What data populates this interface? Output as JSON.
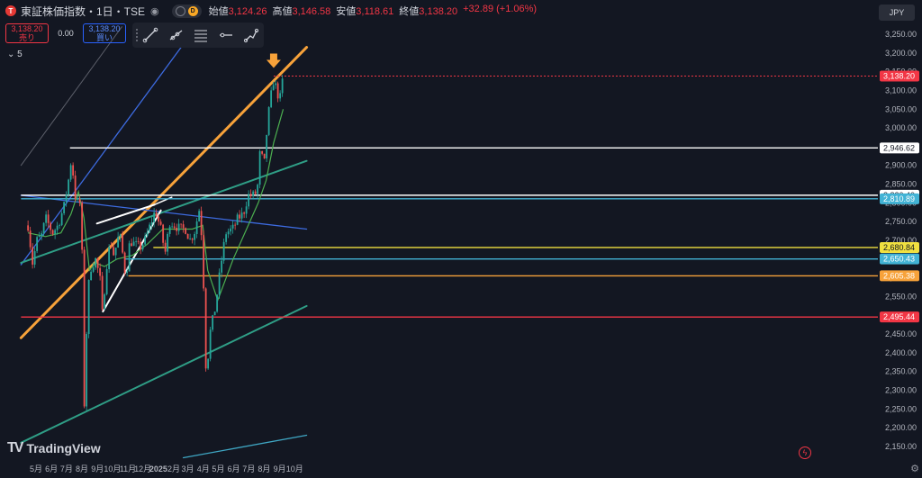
{
  "header": {
    "symbol_title": "東証株価指数・1日・TSE",
    "interval_badge": "D",
    "ohlc": [
      {
        "label": "始値",
        "value": "3,124.26"
      },
      {
        "label": "高値",
        "value": "3,146.58"
      },
      {
        "label": "安値",
        "value": "3,118.61"
      },
      {
        "label": "終値",
        "value": "3,138.20"
      }
    ],
    "change": "+32.89 (+1.06%)"
  },
  "trade": {
    "sell_price": "3,138.20",
    "sell_label": "売り",
    "spread": "0.00",
    "buy_price": "3,138.20",
    "buy_label": "買い"
  },
  "indicator_toggle": "5",
  "currency": "JPY",
  "brand": "TradingView",
  "icons": [
    "logo-icon",
    "eye-icon",
    "settings-icon",
    "lightning-icon",
    "trendline-icon",
    "ray-icon",
    "fib-icon",
    "horizontal-line-icon",
    "path-icon",
    "chevron-down-icon"
  ],
  "colors": {
    "background": "#131722",
    "up": "#26a69a",
    "down": "#ef5350",
    "accent_orange": "#f7a23a",
    "price_label": "#f23645"
  },
  "chart_data": {
    "type": "candlestick",
    "title": "",
    "xlabel": "",
    "ylabel": "",
    "ylim": [
      2120,
      3270
    ],
    "x_ticks": [
      "5月",
      "6月",
      "7月",
      "8月",
      "9月",
      "10月",
      "11月",
      "12月",
      "2025",
      "2月",
      "3月",
      "4月",
      "5月",
      "6月",
      "7月",
      "8月",
      "9月",
      "10月"
    ],
    "y_ticks": [
      2150,
      2200,
      2250,
      2300,
      2350,
      2400,
      2450,
      2500,
      2550,
      2600,
      2650,
      2700,
      2750,
      2800,
      2850,
      2900,
      2950,
      3000,
      3050,
      3100,
      3150,
      3200,
      3250
    ],
    "y_tick_labels": [
      "2,150.00",
      "2,200.00",
      "2,250.00",
      "2,300.00",
      "2,350.00",
      "2,400.00",
      "2,450.00",
      "2,500.00",
      "2,550.00",
      "2,600.00",
      "2,650.00",
      "2,700.00",
      "2,750.00",
      "2,800.00",
      "2,850.00",
      "2,900.00",
      "2,950.00",
      "3,000.00",
      "3,050.00",
      "3,100.00",
      "3,150.00",
      "3,200.00",
      "3,250.00"
    ],
    "price_path": [
      [
        "2024-04-15",
        2740
      ],
      [
        "2024-04-24",
        2640
      ],
      [
        "2024-05-03",
        2700
      ],
      [
        "2024-05-13",
        2715
      ],
      [
        "2024-05-20",
        2760
      ],
      [
        "2024-06-03",
        2720
      ],
      [
        "2024-06-14",
        2740
      ],
      [
        "2024-06-26",
        2790
      ],
      [
        "2024-07-05",
        2860
      ],
      [
        "2024-07-11",
        2920
      ],
      [
        "2024-07-20",
        2800
      ],
      [
        "2024-07-31",
        2800
      ],
      [
        "2024-08-05",
        2230
      ],
      [
        "2024-08-09",
        2420
      ],
      [
        "2024-08-16",
        2620
      ],
      [
        "2024-08-28",
        2650
      ],
      [
        "2024-09-06",
        2600
      ],
      [
        "2024-09-11",
        2500
      ],
      [
        "2024-09-19",
        2630
      ],
      [
        "2024-09-27",
        2700
      ],
      [
        "2024-10-04",
        2660
      ],
      [
        "2024-10-15",
        2720
      ],
      [
        "2024-10-22",
        2660
      ],
      [
        "2024-10-28",
        2600
      ],
      [
        "2024-11-05",
        2700
      ],
      [
        "2024-11-14",
        2690
      ],
      [
        "2024-11-25",
        2680
      ],
      [
        "2024-12-05",
        2700
      ],
      [
        "2024-12-13",
        2730
      ],
      [
        "2024-12-26",
        2780
      ],
      [
        "2025-01-08",
        2720
      ],
      [
        "2025-01-14",
        2660
      ],
      [
        "2025-01-24",
        2750
      ],
      [
        "2025-02-03",
        2740
      ],
      [
        "2025-02-14",
        2730
      ],
      [
        "2025-02-25",
        2730
      ],
      [
        "2025-03-05",
        2700
      ],
      [
        "2025-03-14",
        2720
      ],
      [
        "2025-03-25",
        2790
      ],
      [
        "2025-03-31",
        2660
      ],
      [
        "2025-04-07",
        2330
      ],
      [
        "2025-04-14",
        2450
      ],
      [
        "2025-04-25",
        2520
      ],
      [
        "2025-05-08",
        2650
      ],
      [
        "2025-05-16",
        2720
      ],
      [
        "2025-05-30",
        2730
      ],
      [
        "2025-06-10",
        2760
      ],
      [
        "2025-06-20",
        2770
      ],
      [
        "2025-06-30",
        2820
      ],
      [
        "2025-07-10",
        2820
      ],
      [
        "2025-07-18",
        2830
      ],
      [
        "2025-07-24",
        2940
      ],
      [
        "2025-08-01",
        2900
      ],
      [
        "2025-08-08",
        3020
      ],
      [
        "2025-08-14",
        3080
      ],
      [
        "2025-08-20",
        3130
      ],
      [
        "2025-08-28",
        3090
      ],
      [
        "2025-09-02",
        3080
      ],
      [
        "2025-09-05",
        3110
      ],
      [
        "2025-09-08",
        3138
      ]
    ],
    "ma_path": [
      [
        "2024-04-15",
        2720
      ],
      [
        "2024-05-20",
        2710
      ],
      [
        "2024-06-20",
        2720
      ],
      [
        "2024-07-10",
        2770
      ],
      [
        "2024-07-25",
        2830
      ],
      [
        "2024-08-05",
        2760
      ],
      [
        "2024-08-16",
        2620
      ],
      [
        "2024-08-28",
        2640
      ],
      [
        "2024-09-15",
        2630
      ],
      [
        "2024-10-10",
        2650
      ],
      [
        "2024-11-10",
        2660
      ],
      [
        "2024-12-10",
        2690
      ],
      [
        "2025-01-10",
        2730
      ],
      [
        "2025-02-10",
        2730
      ],
      [
        "2025-03-10",
        2730
      ],
      [
        "2025-03-31",
        2740
      ],
      [
        "2025-04-10",
        2620
      ],
      [
        "2025-04-30",
        2540
      ],
      [
        "2025-05-31",
        2650
      ],
      [
        "2025-06-30",
        2740
      ],
      [
        "2025-07-20",
        2800
      ],
      [
        "2025-08-05",
        2860
      ],
      [
        "2025-08-20",
        2960
      ],
      [
        "2025-09-08",
        3050
      ]
    ],
    "horizontal_levels": [
      {
        "price": 2946.62,
        "label": "2,946.62",
        "color": "#ffffff",
        "from": "2024-07-08"
      },
      {
        "price": 2820.4,
        "label": "2,820.40",
        "color": "#ffffff",
        "from": "2024-04-01"
      },
      {
        "price": 2810.89,
        "label": "2,810.89",
        "color": "#42b3d5",
        "from": "2024-04-01"
      },
      {
        "price": 2680.84,
        "label": "2,680.84",
        "color": "#f0e040",
        "from": "2024-12-22"
      },
      {
        "price": 2650.43,
        "label": "2,650.43",
        "color": "#42b3d5",
        "from": "2024-10-27"
      },
      {
        "price": 2605.38,
        "label": "2,605.38",
        "color": "#f7a23a",
        "from": "2024-11-02"
      },
      {
        "price": 2495.44,
        "label": "2,495.44",
        "color": "#f23645",
        "from": "2024-04-01"
      }
    ],
    "current_price": {
      "price": 3138.2,
      "label": "3,138.20",
      "color": "#f23645"
    },
    "trendlines": [
      {
        "color": "#f7a23a",
        "width": 3,
        "p1": [
          "2024-04-01",
          2440
        ],
        "p2": [
          "2025-10-25",
          3215
        ]
      },
      {
        "color": "#3d6be0",
        "width": 1.3,
        "p1": [
          "2024-04-01",
          2635
        ],
        "p2": [
          "2025-03-18",
          3270
        ]
      },
      {
        "color": "#3d6be0",
        "width": 1.3,
        "p1": [
          "2024-04-01",
          2820
        ],
        "p2": [
          "2025-10-25",
          2730
        ]
      },
      {
        "color": "#2f9e86",
        "width": 2,
        "p1": [
          "2024-04-01",
          2640
        ],
        "p2": [
          "2025-10-25",
          2912
        ]
      },
      {
        "color": "#2f9e86",
        "width": 2,
        "p1": [
          "2024-04-01",
          2160
        ],
        "p2": [
          "2025-10-25",
          2525
        ]
      },
      {
        "color": "#3fa7c4",
        "width": 1.3,
        "p1": [
          "2025-02-20",
          2120
        ],
        "p2": [
          "2025-10-25",
          2180
        ]
      },
      {
        "color": "#5d606b",
        "width": 1,
        "p1": [
          "2024-04-01",
          2900
        ],
        "p2": [
          "2024-10-20",
          3270
        ]
      },
      {
        "color": "#ffffff",
        "width": 2,
        "p1": [
          "2024-08-31",
          2745
        ],
        "p2": [
          "2024-12-24",
          2795
        ]
      },
      {
        "color": "#ffffff",
        "width": 2,
        "p1": [
          "2024-09-12",
          2510
        ],
        "p2": [
          "2025-01-06",
          2780
        ]
      },
      {
        "color": "#ffffff",
        "width": 1.5,
        "p1": [
          "2024-12-24",
          2795
        ],
        "p2": [
          "2025-01-28",
          2815
        ]
      }
    ],
    "annotation_arrow": {
      "date": "2025-08-20",
      "price": 3160,
      "color": "#f7a23a"
    },
    "grid": false,
    "legend": "none"
  }
}
